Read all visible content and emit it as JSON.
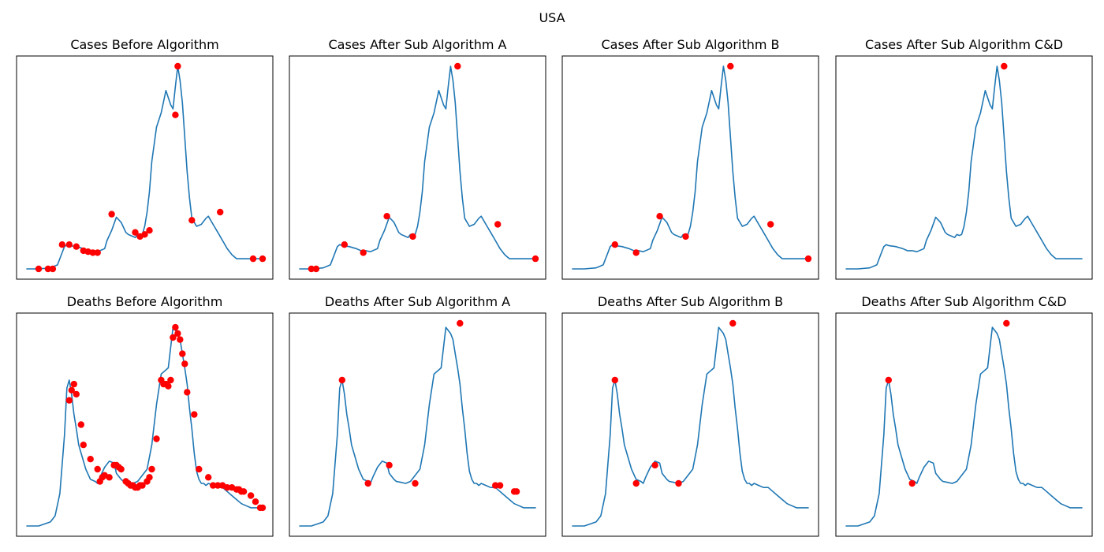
{
  "figure_title": "USA",
  "colors": {
    "line": "#1f77b4",
    "marker": "#ff0000",
    "frame": "#000000"
  },
  "chart_data": [
    {
      "type": "line",
      "title": "Cases Before Algorithm",
      "xlabel": "",
      "ylabel": "",
      "xlim": [
        0,
        100
      ],
      "ylim": [
        0,
        100
      ],
      "grid": false,
      "ticks": false,
      "x": [
        0,
        5,
        10,
        13,
        15,
        16,
        17,
        18,
        21,
        24,
        26,
        28,
        30,
        33,
        34,
        36,
        38,
        40,
        42,
        43,
        45,
        46,
        47,
        48,
        49,
        50,
        51,
        52,
        53,
        55,
        57,
        59,
        61,
        62,
        63,
        64,
        65,
        66,
        67,
        68,
        69,
        70,
        72,
        74,
        76,
        77,
        79,
        81,
        83,
        85,
        87,
        88,
        89,
        91,
        93,
        95,
        97,
        99,
        100
      ],
      "y": [
        0,
        0,
        0.5,
        2,
        8,
        11,
        12,
        11.5,
        11,
        10,
        9,
        9,
        8.5,
        10,
        14,
        19,
        25.5,
        23,
        18,
        17,
        16,
        15.5,
        17,
        16.5,
        17,
        21,
        28,
        38,
        53,
        70,
        77,
        88,
        81,
        79,
        90,
        100,
        93,
        82,
        65,
        48,
        35,
        25,
        21,
        22,
        25,
        26,
        22,
        18,
        14,
        10,
        7,
        6,
        5,
        5,
        5,
        5,
        5,
        5,
        5
      ],
      "markers": {
        "x": [
          5,
          9,
          11,
          15,
          18,
          21,
          24,
          26,
          28,
          30,
          36,
          46,
          48,
          50,
          52,
          63,
          64,
          70,
          82,
          96,
          100
        ],
        "y": [
          0,
          0,
          0,
          12,
          12,
          11,
          9,
          8.5,
          8,
          8,
          27,
          18,
          16,
          17,
          19,
          76,
          100,
          24,
          28,
          5,
          5
        ]
      }
    },
    {
      "type": "line",
      "title": "Cases After Sub Algorithm A",
      "xlabel": "",
      "ylabel": "",
      "xlim": [
        0,
        100
      ],
      "ylim": [
        0,
        100
      ],
      "grid": false,
      "ticks": false,
      "x": [
        0,
        5,
        10,
        13,
        15,
        16,
        17,
        18,
        21,
        24,
        26,
        28,
        30,
        33,
        34,
        36,
        38,
        40,
        42,
        43,
        45,
        46,
        47,
        48,
        49,
        50,
        51,
        52,
        53,
        55,
        57,
        59,
        61,
        62,
        63,
        64,
        65,
        66,
        67,
        68,
        69,
        70,
        72,
        74,
        76,
        77,
        79,
        81,
        83,
        85,
        87,
        88,
        89,
        91,
        93,
        95,
        97,
        99,
        100
      ],
      "y": [
        0,
        0,
        0.5,
        2,
        8,
        11,
        12,
        11.5,
        11,
        10,
        9,
        9,
        8.5,
        10,
        14,
        19,
        25.5,
        23,
        18,
        17,
        16,
        15.5,
        17,
        16.5,
        17,
        21,
        28,
        38,
        53,
        70,
        77,
        88,
        81,
        79,
        90,
        100,
        93,
        82,
        65,
        48,
        35,
        25,
        21,
        22,
        25,
        26,
        22,
        18,
        14,
        10,
        7,
        6,
        5,
        5,
        5,
        5,
        5,
        5,
        5
      ],
      "markers": {
        "x": [
          5,
          7,
          19,
          27,
          37,
          48,
          67,
          84,
          100
        ],
        "y": [
          0,
          0,
          12,
          8,
          26,
          16,
          100,
          22,
          5
        ]
      }
    },
    {
      "type": "line",
      "title": "Cases After Sub Algorithm B",
      "xlabel": "",
      "ylabel": "",
      "xlim": [
        0,
        100
      ],
      "ylim": [
        0,
        100
      ],
      "grid": false,
      "ticks": false,
      "x": [
        0,
        5,
        10,
        13,
        15,
        16,
        17,
        18,
        21,
        24,
        26,
        28,
        30,
        33,
        34,
        36,
        38,
        40,
        42,
        43,
        45,
        46,
        47,
        48,
        49,
        50,
        51,
        52,
        53,
        55,
        57,
        59,
        61,
        62,
        63,
        64,
        65,
        66,
        67,
        68,
        69,
        70,
        72,
        74,
        76,
        77,
        79,
        81,
        83,
        85,
        87,
        88,
        89,
        91,
        93,
        95,
        97,
        99,
        100
      ],
      "y": [
        0,
        0,
        0.5,
        2,
        8,
        11,
        12,
        11.5,
        11,
        10,
        9,
        9,
        8.5,
        10,
        14,
        19,
        25.5,
        23,
        18,
        17,
        16,
        15.5,
        17,
        16.5,
        17,
        21,
        28,
        38,
        53,
        70,
        77,
        88,
        81,
        79,
        90,
        100,
        93,
        82,
        65,
        48,
        35,
        25,
        21,
        22,
        25,
        26,
        22,
        18,
        14,
        10,
        7,
        6,
        5,
        5,
        5,
        5,
        5,
        5,
        5
      ],
      "markers": {
        "x": [
          18,
          27,
          37,
          48,
          67,
          84,
          100
        ],
        "y": [
          12,
          8,
          26,
          16,
          100,
          22,
          5
        ]
      }
    },
    {
      "type": "line",
      "title": "Cases After Sub Algorithm C&D",
      "xlabel": "",
      "ylabel": "",
      "xlim": [
        0,
        100
      ],
      "ylim": [
        0,
        100
      ],
      "grid": false,
      "ticks": false,
      "x": [
        0,
        5,
        10,
        13,
        15,
        16,
        17,
        18,
        21,
        24,
        26,
        28,
        30,
        33,
        34,
        36,
        38,
        40,
        42,
        43,
        45,
        46,
        47,
        48,
        49,
        50,
        51,
        52,
        53,
        55,
        57,
        59,
        61,
        62,
        63,
        64,
        65,
        66,
        67,
        68,
        69,
        70,
        72,
        74,
        76,
        77,
        79,
        81,
        83,
        85,
        87,
        88,
        89,
        91,
        93,
        95,
        97,
        99,
        100
      ],
      "y": [
        0,
        0,
        0.5,
        2,
        8,
        11,
        12,
        11.5,
        11,
        10,
        9,
        9,
        8.5,
        10,
        14,
        19,
        25.5,
        23,
        18,
        17,
        16,
        15.5,
        17,
        16.5,
        17,
        21,
        28,
        38,
        53,
        70,
        77,
        88,
        81,
        79,
        90,
        100,
        93,
        82,
        65,
        48,
        35,
        25,
        21,
        22,
        25,
        26,
        22,
        18,
        14,
        10,
        7,
        6,
        5,
        5,
        5,
        5,
        5,
        5,
        5
      ],
      "markers": {
        "x": [
          67
        ],
        "y": [
          100
        ]
      }
    },
    {
      "type": "line",
      "title": "Deaths Before Algorithm",
      "xlabel": "",
      "ylabel": "",
      "xlim": [
        0,
        100
      ],
      "ylim": [
        0,
        100
      ],
      "grid": false,
      "ticks": false,
      "x": [
        0,
        5,
        10,
        12,
        14,
        16,
        17,
        18,
        19,
        20,
        21,
        22,
        23,
        25,
        27,
        29,
        30,
        31,
        33,
        35,
        37,
        38,
        40,
        41,
        43,
        45,
        47,
        49,
        51,
        53,
        55,
        57,
        60,
        62,
        64,
        65,
        66,
        67,
        68,
        69,
        70,
        71,
        72,
        73,
        74,
        75,
        76,
        77,
        79,
        81,
        83,
        85,
        87,
        89,
        91,
        93,
        95,
        97,
        98,
        99,
        100
      ],
      "y": [
        0,
        0,
        2,
        5,
        16,
        45,
        68,
        72,
        65,
        55,
        48,
        40,
        36,
        28,
        23,
        22,
        21,
        24,
        29,
        32,
        31,
        26,
        23,
        22,
        21.5,
        21,
        22,
        25,
        28,
        40,
        60,
        75,
        78,
        98,
        95,
        92,
        85,
        78,
        70,
        58,
        48,
        36,
        27,
        23,
        21,
        21,
        20,
        21,
        20,
        19,
        19,
        17,
        15,
        13,
        11,
        10,
        9,
        9,
        9,
        9,
        9
      ],
      "markers": {
        "x": [
          18,
          19,
          20,
          21,
          23,
          24,
          27,
          30,
          31,
          32,
          33,
          35,
          37,
          38,
          39,
          40,
          42,
          43,
          44,
          45,
          46,
          47,
          48,
          49,
          51,
          52,
          53,
          55,
          57,
          58,
          59,
          60,
          61,
          62,
          63,
          64,
          65,
          66,
          67,
          68,
          71,
          73,
          77,
          79,
          81,
          83,
          85,
          87,
          89,
          90,
          91,
          92,
          95,
          97,
          99,
          100
        ],
        "y": [
          62,
          67,
          70,
          65,
          50,
          40,
          33,
          28,
          22,
          24,
          25,
          24,
          30,
          30,
          29,
          28,
          22,
          21,
          20,
          20,
          19,
          19,
          20,
          20,
          22,
          24,
          28,
          43,
          72,
          70,
          70,
          69,
          72,
          93,
          98,
          95,
          92,
          85,
          80,
          66,
          55,
          28,
          24,
          20,
          20,
          20,
          19,
          19,
          18,
          18,
          17,
          17,
          15,
          12,
          9,
          9
        ]
      }
    },
    {
      "type": "line",
      "title": "Deaths After Sub Algorithm A",
      "xlabel": "",
      "ylabel": "",
      "xlim": [
        0,
        100
      ],
      "ylim": [
        0,
        100
      ],
      "grid": false,
      "ticks": false,
      "x": [
        0,
        5,
        10,
        12,
        14,
        16,
        17,
        18,
        19,
        20,
        21,
        22,
        23,
        25,
        27,
        29,
        30,
        31,
        33,
        35,
        37,
        38,
        40,
        41,
        43,
        45,
        47,
        49,
        51,
        53,
        55,
        57,
        60,
        62,
        64,
        65,
        66,
        67,
        68,
        69,
        70,
        71,
        72,
        73,
        74,
        75,
        76,
        77,
        79,
        81,
        83,
        85,
        87,
        89,
        91,
        93,
        95,
        97,
        98,
        99,
        100
      ],
      "y": [
        0,
        0,
        2,
        5,
        16,
        45,
        68,
        72,
        65,
        55,
        48,
        40,
        36,
        28,
        23,
        22,
        21,
        24,
        29,
        32,
        31,
        26,
        23,
        22,
        21.5,
        21,
        22,
        25,
        28,
        40,
        60,
        75,
        78,
        98,
        95,
        92,
        85,
        78,
        70,
        58,
        48,
        36,
        27,
        23,
        21,
        21,
        20,
        21,
        20,
        19,
        19,
        17,
        15,
        13,
        11,
        10,
        9,
        9,
        9,
        9,
        9
      ],
      "markers": {
        "x": [
          18,
          29,
          38,
          49,
          68,
          83,
          85,
          91,
          92
        ],
        "y": [
          72,
          21,
          30,
          21,
          100,
          20,
          20,
          17,
          17
        ]
      }
    },
    {
      "type": "line",
      "title": "Deaths After Sub Algorithm B",
      "xlabel": "",
      "ylabel": "",
      "xlim": [
        0,
        100
      ],
      "ylim": [
        0,
        100
      ],
      "grid": false,
      "ticks": false,
      "x": [
        0,
        5,
        10,
        12,
        14,
        16,
        17,
        18,
        19,
        20,
        21,
        22,
        23,
        25,
        27,
        29,
        30,
        31,
        33,
        35,
        37,
        38,
        40,
        41,
        43,
        45,
        47,
        49,
        51,
        53,
        55,
        57,
        60,
        62,
        64,
        65,
        66,
        67,
        68,
        69,
        70,
        71,
        72,
        73,
        74,
        75,
        76,
        77,
        79,
        81,
        83,
        85,
        87,
        89,
        91,
        93,
        95,
        97,
        98,
        99,
        100
      ],
      "y": [
        0,
        0,
        2,
        5,
        16,
        45,
        68,
        72,
        65,
        55,
        48,
        40,
        36,
        28,
        23,
        22,
        21,
        24,
        29,
        32,
        31,
        26,
        23,
        22,
        21.5,
        21,
        22,
        25,
        28,
        40,
        60,
        75,
        78,
        98,
        95,
        92,
        85,
        78,
        70,
        58,
        48,
        36,
        27,
        23,
        21,
        21,
        20,
        21,
        20,
        19,
        19,
        17,
        15,
        13,
        11,
        10,
        9,
        9,
        9,
        9,
        9
      ],
      "markers": {
        "x": [
          18,
          27,
          35,
          45,
          68
        ],
        "y": [
          72,
          21,
          30,
          21,
          100
        ]
      }
    },
    {
      "type": "line",
      "title": "Deaths After Sub Algorithm C&D",
      "xlabel": "",
      "ylabel": "",
      "xlim": [
        0,
        100
      ],
      "ylim": [
        0,
        100
      ],
      "grid": false,
      "ticks": false,
      "x": [
        0,
        5,
        10,
        12,
        14,
        16,
        17,
        18,
        19,
        20,
        21,
        22,
        23,
        25,
        27,
        29,
        30,
        31,
        33,
        35,
        37,
        38,
        40,
        41,
        43,
        45,
        47,
        49,
        51,
        53,
        55,
        57,
        60,
        62,
        64,
        65,
        66,
        67,
        68,
        69,
        70,
        71,
        72,
        73,
        74,
        75,
        76,
        77,
        79,
        81,
        83,
        85,
        87,
        89,
        91,
        93,
        95,
        97,
        98,
        99,
        100
      ],
      "y": [
        0,
        0,
        2,
        5,
        16,
        45,
        68,
        72,
        65,
        55,
        48,
        40,
        36,
        28,
        23,
        22,
        21,
        24,
        29,
        32,
        31,
        26,
        23,
        22,
        21.5,
        21,
        22,
        25,
        28,
        40,
        60,
        75,
        78,
        98,
        95,
        92,
        85,
        78,
        70,
        58,
        48,
        36,
        27,
        23,
        21,
        21,
        20,
        21,
        20,
        19,
        19,
        17,
        15,
        13,
        11,
        10,
        9,
        9,
        9,
        9,
        9
      ],
      "markers": {
        "x": [
          18,
          28,
          68
        ],
        "y": [
          72,
          21,
          100
        ]
      }
    }
  ]
}
